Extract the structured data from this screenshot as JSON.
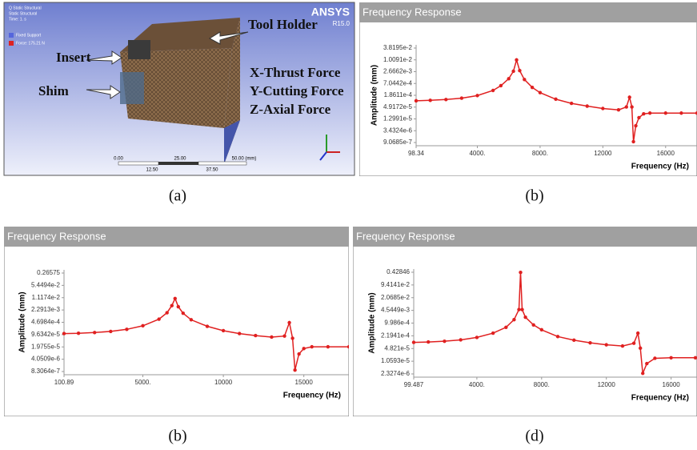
{
  "model_view": {
    "title": "Q Static Structural",
    "subtitle": "Static Structural",
    "time": "Time: 1. s",
    "legend": [
      "Fixed Support",
      "Force: 175.21 N"
    ],
    "brand": "ANSYS",
    "version": "R15.0",
    "labels": [
      "Insert",
      "Tool Holder",
      "Shim",
      "X-Thrust Force",
      "Y-Cutting Force",
      "Z-Axial Force"
    ],
    "scale_top": [
      "0.00",
      "25.00",
      "50.00 (mm)"
    ],
    "scale_bottom": [
      "12.50",
      "37.50"
    ],
    "caption": "(a)"
  },
  "chart_data": [
    {
      "type": "line",
      "title": "Frequency Response",
      "caption": "(b)",
      "x_label": "Frequency (Hz)",
      "y_label": "Amplitude (mm)",
      "y_scale": "log",
      "x": [
        98.34,
        1000,
        2000,
        3000,
        4000,
        5000,
        5500,
        6000,
        6300,
        6500,
        6700,
        7000,
        7500,
        8000,
        9000,
        10000,
        11000,
        12000,
        13000,
        13500,
        13700,
        13850,
        13950,
        14100,
        14300,
        14600,
        15000,
        16000,
        17000,
        18000
      ],
      "series": [
        {
          "color": "#e02020",
          "values": [
            0.0001,
            0.000105,
            0.000115,
            0.000135,
            0.00018,
            0.00032,
            0.00055,
            0.0012,
            0.0028,
            0.01,
            0.003,
            0.0011,
            0.00045,
            0.00025,
            0.00012,
            7.5e-05,
            5.5e-05,
            4.2e-05,
            3.6e-05,
            5e-05,
            0.00015,
            5e-05,
            1e-06,
            6e-06,
            1.5e-05,
            2.3e-05,
            2.5e-05,
            2.5e-05,
            2.5e-05,
            2.5e-05
          ]
        }
      ],
      "xlim": [
        98.34,
        18000
      ],
      "xticks": [
        98.34,
        {
          "value": 4000,
          "label": "4000."
        },
        {
          "value": 8000,
          "label": "8000."
        },
        12000,
        16000
      ],
      "ylim": [
        9.0685e-07,
        0.038195
      ],
      "yticks": [
        {
          "value": 0.038195,
          "label": "3.8195e-2"
        },
        {
          "value": 0.010091,
          "label": "1.0091e-2"
        },
        {
          "value": 0.0026662,
          "label": "2.6662e-3"
        },
        {
          "value": 0.00070442,
          "label": "7.0442e-4"
        },
        {
          "value": 0.00018611,
          "label": "1.8611e-4"
        },
        {
          "value": 4.9172e-05,
          "label": "4.9172e-5"
        },
        {
          "value": 1.2991e-05,
          "label": "1.2991e-5"
        },
        {
          "value": 3.4324e-06,
          "label": "3.4324e-6"
        },
        {
          "value": 9.0685e-07,
          "label": "9.0685e-7"
        }
      ]
    },
    {
      "type": "line",
      "title": "Frequency Response",
      "caption": "(b)",
      "x_label": "Frequency (Hz)",
      "y_label": "Amplitude (mm)",
      "y_scale": "log",
      "x": [
        100.89,
        1000,
        2000,
        3000,
        4000,
        5000,
        6000,
        6500,
        6800,
        7000,
        7200,
        7500,
        8000,
        9000,
        10000,
        11000,
        12000,
        13000,
        13800,
        14100,
        14300,
        14450,
        14700,
        15000,
        15500,
        16500,
        17800
      ],
      "series": [
        {
          "color": "#e02020",
          "values": [
            0.00011,
            0.000115,
            0.000125,
            0.000145,
            0.00019,
            0.0003,
            0.0007,
            0.0016,
            0.004,
            0.01,
            0.0035,
            0.0015,
            0.00065,
            0.00028,
            0.00016,
            0.00011,
            8.5e-05,
            7e-05,
            8e-05,
            0.00045,
            6e-05,
            1e-06,
            8e-06,
            1.6e-05,
            2e-05,
            2e-05,
            2e-05
          ]
        }
      ],
      "xlim": [
        100.89,
        17800
      ],
      "xticks": [
        100.89,
        {
          "value": 5000,
          "label": "5000."
        },
        10000,
        15000
      ],
      "ylim": [
        8.3064e-07,
        0.26575
      ],
      "yticks": [
        0.26575,
        {
          "value": 0.054494,
          "label": "5.4494e-2"
        },
        {
          "value": 0.011174,
          "label": "1.1174e-2"
        },
        {
          "value": 0.0022913,
          "label": "2.2913e-3"
        },
        {
          "value": 0.00046984,
          "label": "4.6984e-4"
        },
        {
          "value": 9.6342e-05,
          "label": "9.6342e-5"
        },
        {
          "value": 1.9755e-05,
          "label": "1.9755e-5"
        },
        {
          "value": 4.0509e-06,
          "label": "4.0509e-6"
        },
        {
          "value": 8.3064e-07,
          "label": "8.3064e-7"
        }
      ]
    },
    {
      "type": "line",
      "title": "Frequency Response",
      "caption": "(d)",
      "x_label": "Frequency (Hz)",
      "y_label": "Amplitude (mm)",
      "y_scale": "log",
      "x": [
        99.487,
        1000,
        2000,
        3000,
        4000,
        5000,
        5800,
        6300,
        6600,
        6700,
        6800,
        7000,
        7500,
        8000,
        9000,
        10000,
        11000,
        12000,
        13000,
        13700,
        13950,
        14100,
        14250,
        14500,
        15000,
        16000,
        17500
      ],
      "series": [
        {
          "color": "#e02020",
          "values": [
            0.0001,
            0.000105,
            0.000115,
            0.000135,
            0.00018,
            0.0003,
            0.0006,
            0.0015,
            0.005,
            0.42,
            0.005,
            0.002,
            0.0008,
            0.00045,
            0.0002,
            0.00013,
            9.5e-05,
            7.5e-05,
            6.5e-05,
            9e-05,
            0.0003,
            5e-05,
            2.5e-06,
            8e-06,
            1.5e-05,
            1.6e-05,
            1.6e-05
          ]
        }
      ],
      "xlim": [
        99.487,
        17600
      ],
      "xticks": [
        99.487,
        {
          "value": 4000,
          "label": "4000."
        },
        {
          "value": 8000,
          "label": "8000."
        },
        12000,
        16000
      ],
      "ylim": [
        2.3274e-06,
        0.42846
      ],
      "yticks": [
        0.42846,
        {
          "value": 0.094141,
          "label": "9.4141e-2"
        },
        {
          "value": 0.020685,
          "label": "2.0685e-2"
        },
        {
          "value": 0.0045449,
          "label": "4.5449e-3"
        },
        {
          "value": 0.0009986,
          "label": "9.986e-4"
        },
        {
          "value": 0.00021941,
          "label": "2.1941e-4"
        },
        {
          "value": 4.821e-05,
          "label": "4.821e-5"
        },
        {
          "value": 1.0593e-05,
          "label": "1.0593e-5"
        },
        {
          "value": 2.3274e-06,
          "label": "2.3274e-6"
        }
      ]
    }
  ]
}
